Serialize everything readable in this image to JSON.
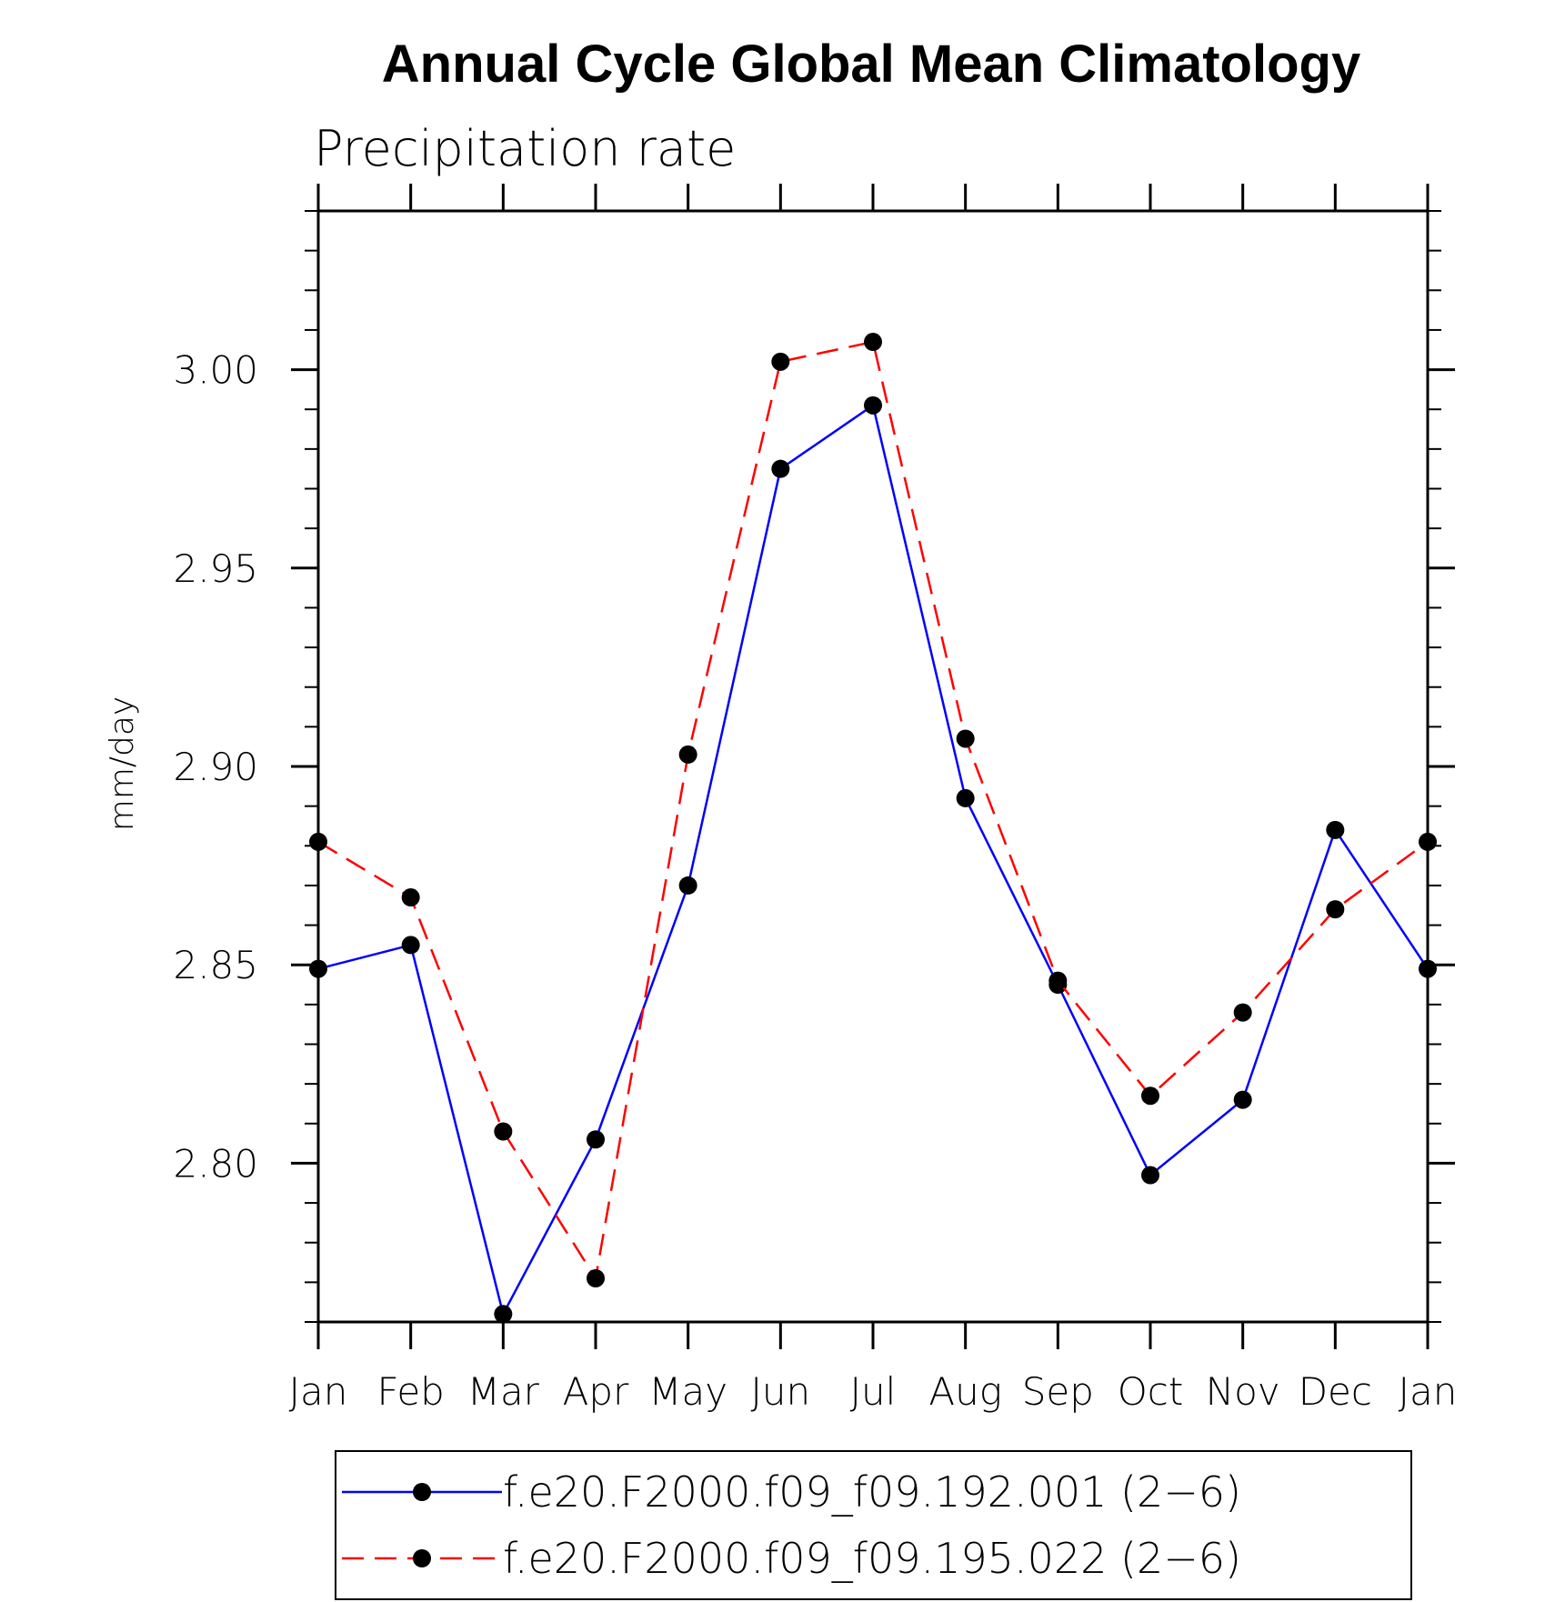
{
  "chart_data": {
    "type": "line",
    "title": "Annual Cycle Global Mean Climatology",
    "subtitle": "Precipitation rate",
    "xlabel": "",
    "ylabel": "mm/day",
    "categories": [
      "Jan",
      "Feb",
      "Mar",
      "Apr",
      "May",
      "Jun",
      "Jul",
      "Aug",
      "Sep",
      "Oct",
      "Nov",
      "Dec",
      "Jan"
    ],
    "ylim": [
      2.76,
      3.04
    ],
    "yticks": [
      2.8,
      2.85,
      2.9,
      2.95,
      3.0
    ],
    "ytick_labels": [
      "2.80",
      "2.85",
      "2.90",
      "2.95",
      "3.00"
    ],
    "y_minor_step": 0.01,
    "grid": false,
    "legend_position": "bottom",
    "series": [
      {
        "name": "f.e20.F2000.f09_f09.192.001 (2−6)",
        "color": "#0000ff",
        "line_style": "solid",
        "marker": "filled-circle",
        "values": [
          2.849,
          2.855,
          2.762,
          2.806,
          2.87,
          2.975,
          2.991,
          2.892,
          2.845,
          2.797,
          2.816,
          2.884,
          2.849
        ]
      },
      {
        "name": "f.e20.F2000.f09_f09.195.022 (2−6)",
        "color": "#ff0000",
        "line_style": "dashed",
        "marker": "filled-circle",
        "values": [
          2.881,
          2.867,
          2.808,
          2.771,
          2.903,
          3.002,
          3.007,
          2.907,
          2.846,
          2.817,
          2.838,
          2.864,
          2.881
        ]
      }
    ]
  }
}
